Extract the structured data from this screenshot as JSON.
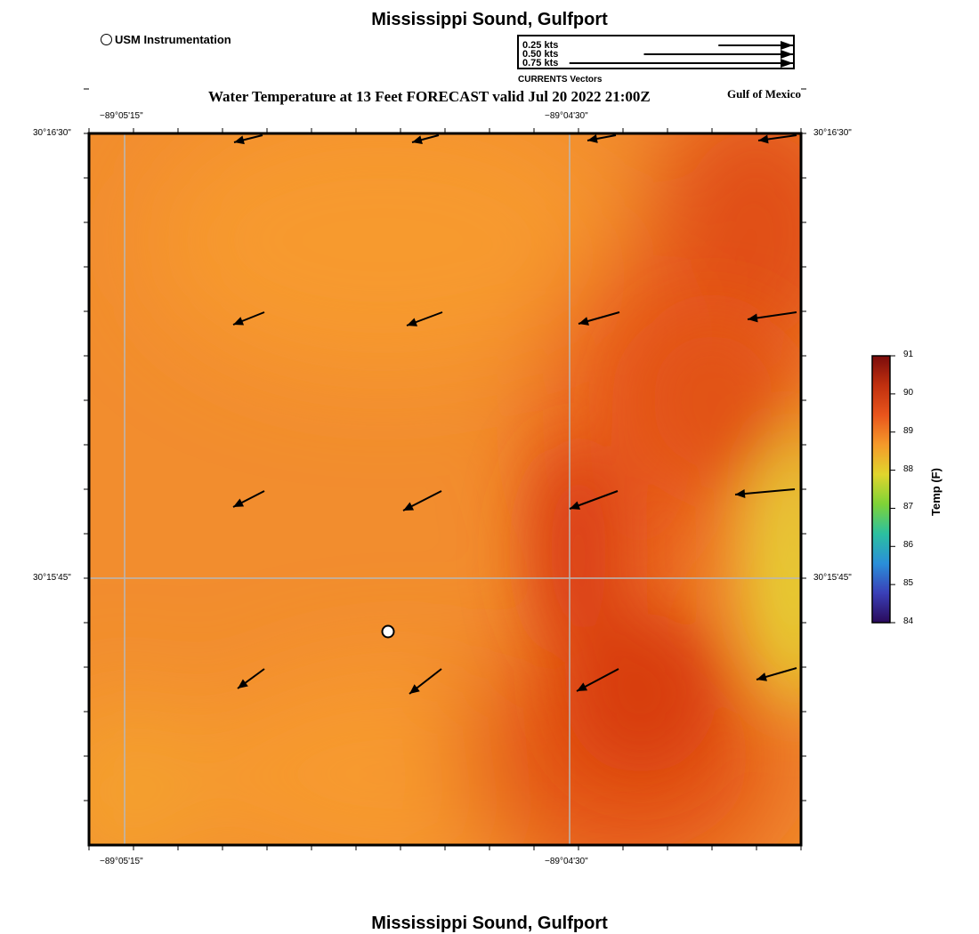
{
  "title": "Mississippi Sound, Gulfport",
  "footer_title": "Mississippi Sound, Gulfport",
  "subtitle": "Water Temperature at 13 Feet FORECAST valid Jul 20 2022 21:00Z",
  "region_label": "Gulf of Mexico",
  "station_legend": {
    "label": "USM Instrumentation",
    "icon": "open-circle"
  },
  "vector_legend": {
    "entries": [
      {
        "label": "0.25 kts",
        "speed_kts": 0.25
      },
      {
        "label": "0.50 kts",
        "speed_kts": 0.5
      },
      {
        "label": "0.75 kts",
        "speed_kts": 0.75
      }
    ],
    "caption": "CURRENTS Vectors"
  },
  "axes": {
    "x_ticks": [
      {
        "label": "−89°05'15\""
      },
      {
        "label": "−89°04'30\""
      }
    ],
    "y_ticks": [
      {
        "label": "30°16'30\""
      },
      {
        "label": "30°15'45\""
      }
    ]
  },
  "colorbar": {
    "title": "Temp (F)",
    "min": 84,
    "max": 91,
    "ticks": [
      "91",
      "90",
      "89",
      "88",
      "87",
      "86",
      "85",
      "84"
    ],
    "colors": [
      "#7a0c0c",
      "#c1300f",
      "#e9551c",
      "#f59a2a",
      "#e0d52d",
      "#7ed337",
      "#2bc0a0",
      "#2a8fd9",
      "#3a3fb8",
      "#2a0a5a"
    ]
  },
  "colors": {
    "field_base": "#f28d2e",
    "field_warm": "#e2521a",
    "field_hot": "#d83f12",
    "field_cool": "#e6c535",
    "grid": "#b8b8b8"
  }
}
